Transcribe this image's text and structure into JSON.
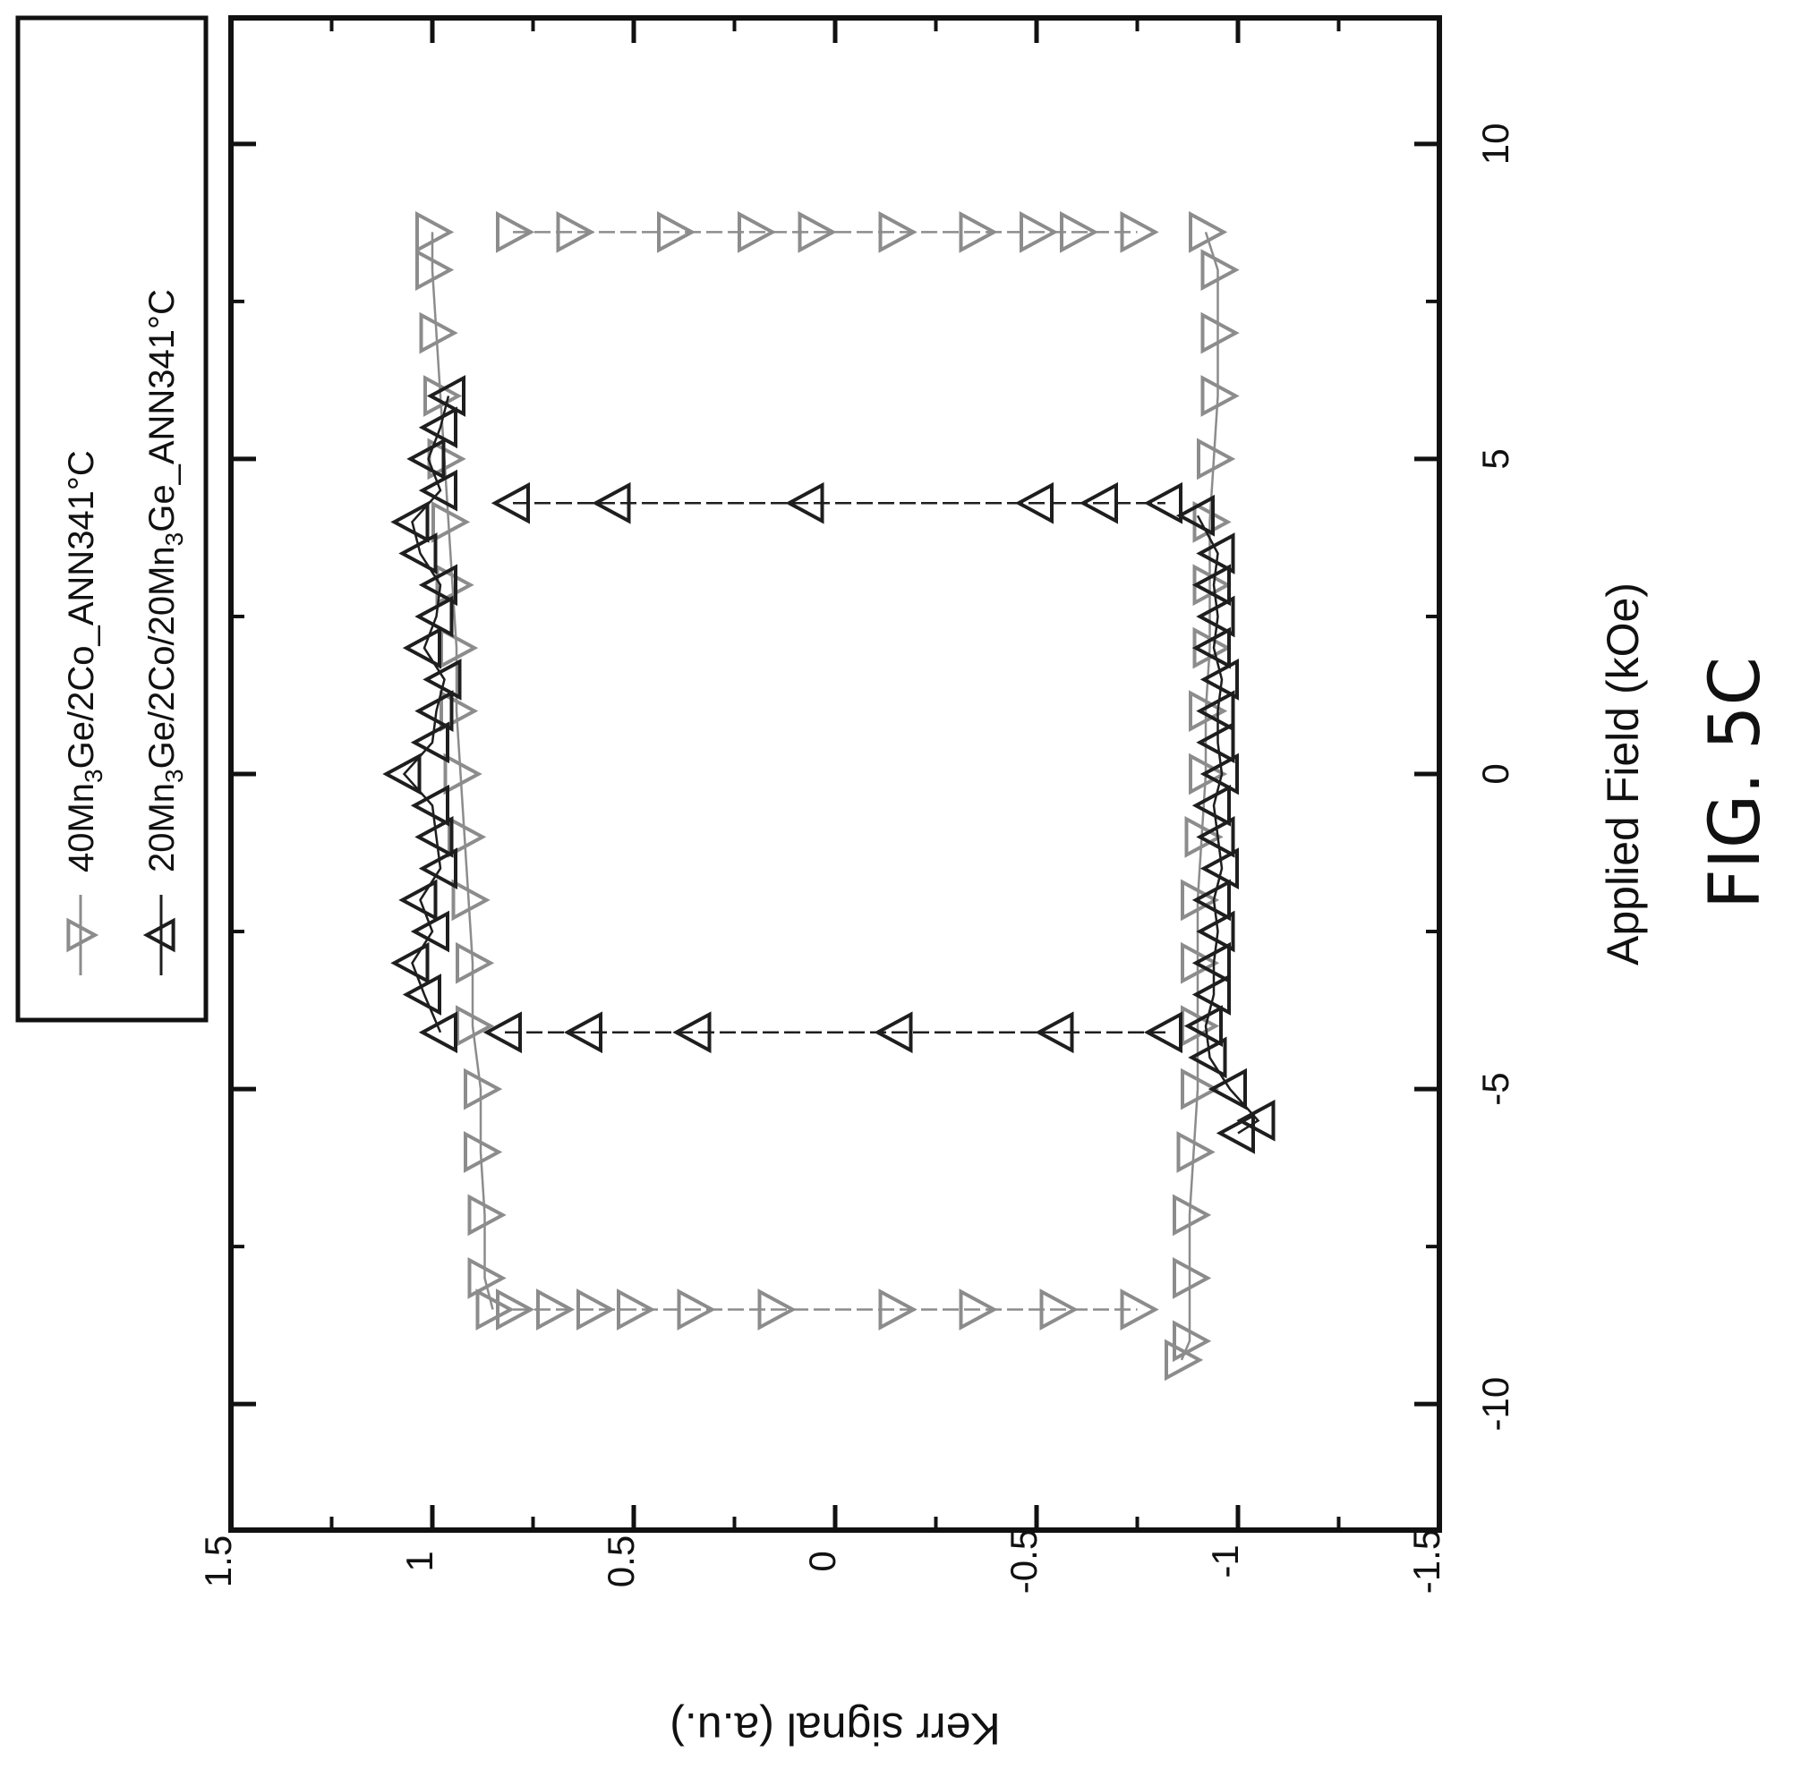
{
  "figure_label": "FIG. 5C",
  "chart_data": {
    "type": "scatter",
    "orientation_note": "rotated",
    "xlabel": "Applied Field (kOe)",
    "ylabel": "Kerr signal (a.u.)",
    "xlim": [
      -12,
      12
    ],
    "ylim": [
      -1.5,
      1.5
    ],
    "x_ticks": [
      "-10",
      "-5",
      "0",
      "5",
      "10"
    ],
    "y_ticks": [
      "1.5",
      "1",
      "0.5",
      "0",
      "-0.5",
      "-1",
      "-1.5"
    ],
    "grid": false,
    "legend_position": "top-left",
    "series": [
      {
        "name_parts": [
          "40Mn",
          "3",
          "Ge/2Co_ANN341°C"
        ],
        "name": "40Mn3Ge/2Co_ANN341°C",
        "marker": "triangle-down",
        "color": "#8c8c8c",
        "coercive_field_kOe": [
          -8.5,
          8.6
        ],
        "branches": {
          "upper": {
            "x": [
              -8.5,
              -8,
              -7,
              -6,
              -5,
              -4,
              -3,
              -2,
              -1,
              0,
              1,
              2,
              3,
              4,
              5,
              6,
              7,
              8,
              8.6
            ],
            "y": [
              0.85,
              0.87,
              0.87,
              0.88,
              0.88,
              0.9,
              0.9,
              0.91,
              0.92,
              0.93,
              0.94,
              0.94,
              0.95,
              0.96,
              0.97,
              0.98,
              0.99,
              1.0,
              1.0
            ]
          },
          "lower": {
            "x": [
              -9.3,
              -9,
              -8,
              -7,
              -6,
              -5,
              -4,
              -3,
              -2,
              -1,
              0,
              1,
              2,
              3,
              4,
              5,
              6,
              7,
              8,
              8.6
            ],
            "y": [
              -0.86,
              -0.88,
              -0.88,
              -0.88,
              -0.89,
              -0.9,
              -0.9,
              -0.9,
              -0.9,
              -0.91,
              -0.92,
              -0.92,
              -0.93,
              -0.93,
              -0.93,
              -0.94,
              -0.95,
              -0.95,
              -0.95,
              -0.92
            ]
          },
          "switch_at_negative": {
            "x": [
              -8.5,
              -8.5,
              -8.5,
              -8.5,
              -8.5,
              -8.5,
              -8.5,
              -8.5,
              -8.5,
              -8.5
            ],
            "y": [
              0.8,
              0.7,
              0.6,
              0.5,
              0.35,
              0.15,
              -0.15,
              -0.35,
              -0.55,
              -0.75
            ]
          },
          "switch_at_positive": {
            "x": [
              8.6,
              8.6,
              8.6,
              8.6,
              8.6,
              8.6,
              8.6,
              8.6,
              8.6,
              8.6
            ],
            "y": [
              0.8,
              0.65,
              0.4,
              0.2,
              0.05,
              -0.15,
              -0.35,
              -0.5,
              -0.6,
              -0.75
            ]
          }
        }
      },
      {
        "name_parts": [
          "20Mn",
          "3",
          "Ge/2Co/20Mn",
          "3",
          "Ge_ANN341°C"
        ],
        "name": "20Mn3Ge/2Co/20Mn3Ge_ANN341°C",
        "marker": "triangle-up",
        "color": "#1e1e1e",
        "coercive_field_kOe": [
          -4.1,
          4.3
        ],
        "branches": {
          "upper": {
            "x": [
              -4.1,
              -3.5,
              -3,
              -2.5,
              -2,
              -1.5,
              -1,
              -0.5,
              0,
              0.5,
              1,
              1.5,
              2,
              2.5,
              3,
              3.5,
              4,
              4.5,
              5,
              5.5,
              6
            ],
            "y": [
              0.98,
              1.02,
              1.05,
              1.0,
              1.03,
              0.98,
              0.99,
              1.0,
              1.07,
              1.0,
              0.99,
              0.97,
              1.02,
              0.99,
              0.98,
              1.03,
              1.05,
              0.98,
              1.01,
              0.98,
              0.96
            ]
          },
          "lower": {
            "x": [
              -5.7,
              -5.5,
              -5,
              -4.5,
              -4,
              -3.5,
              -3,
              -2.5,
              -2,
              -1.5,
              -1,
              -0.5,
              0,
              0.5,
              1,
              1.5,
              2,
              2.5,
              3,
              3.5,
              4.1
            ],
            "y": [
              -1.0,
              -1.05,
              -0.98,
              -0.93,
              -0.92,
              -0.94,
              -0.94,
              -0.95,
              -0.94,
              -0.96,
              -0.95,
              -0.94,
              -0.96,
              -0.95,
              -0.95,
              -0.96,
              -0.94,
              -0.95,
              -0.94,
              -0.95,
              -0.9
            ]
          },
          "switch_at_negative": {
            "x": [
              -4.1,
              -4.1,
              -4.1,
              -4.1,
              -4.1,
              -4.1
            ],
            "y": [
              0.82,
              0.62,
              0.35,
              -0.15,
              -0.55,
              -0.82
            ]
          },
          "switch_at_positive": {
            "x": [
              4.3,
              4.3,
              4.3,
              4.3,
              4.3,
              4.3
            ],
            "y": [
              0.8,
              0.55,
              0.07,
              -0.5,
              -0.66,
              -0.82
            ]
          }
        }
      }
    ]
  }
}
